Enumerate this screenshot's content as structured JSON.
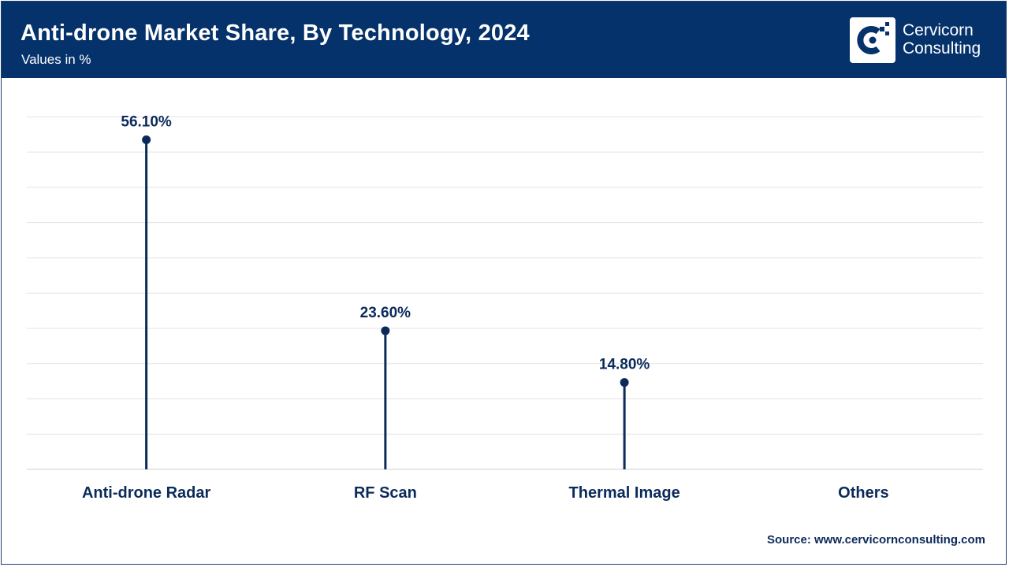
{
  "header": {
    "title": "Anti-drone Market Share, By Technology, 2024",
    "subtitle": "Values in %"
  },
  "logo": {
    "line1": "Cervicorn",
    "line2": "Consulting",
    "icon": "cervicorn-c-logo-icon"
  },
  "source": "Source: www.cervicornconsulting.com",
  "colors": {
    "header_bg": "#06326b",
    "series": "#0b2a5a",
    "grid": "#e3e3e3"
  },
  "chart_data": {
    "type": "lollipop",
    "categories": [
      "Anti-drone Radar",
      "RF Scan",
      "Thermal Image",
      "Others"
    ],
    "values": [
      56.1,
      23.6,
      14.8,
      0
    ],
    "data_labels": [
      "56.10%",
      "23.60%",
      "14.80%",
      ""
    ],
    "ylim": [
      0,
      60
    ],
    "grid": true,
    "legend": "none"
  }
}
